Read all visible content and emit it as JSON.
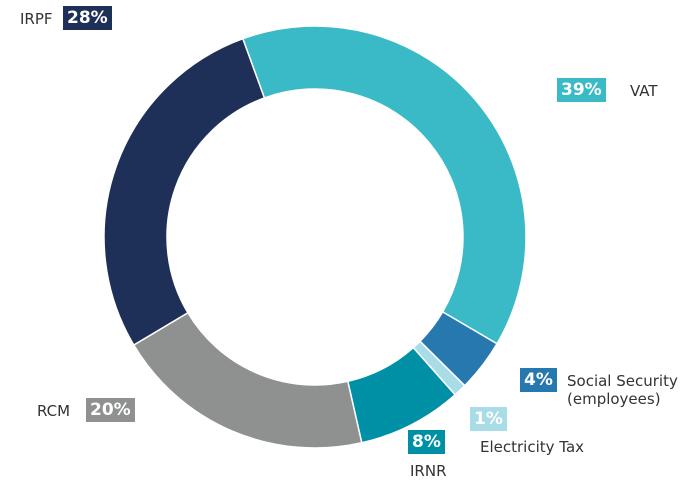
{
  "chart_data": {
    "type": "donut",
    "categories": [
      "VAT",
      "Social Security (employees)",
      "Electricity Tax",
      "IRNR",
      "RCM",
      "IRPF"
    ],
    "values": [
      39,
      4,
      1,
      8,
      20,
      28
    ],
    "value_labels": [
      "39%",
      "4%",
      "1%",
      "8%",
      "20%",
      "28%"
    ],
    "colors": [
      "#3ab9c6",
      "#2878b0",
      "#a8dce6",
      "#0090a6",
      "#8f9190",
      "#1f3058"
    ]
  }
}
